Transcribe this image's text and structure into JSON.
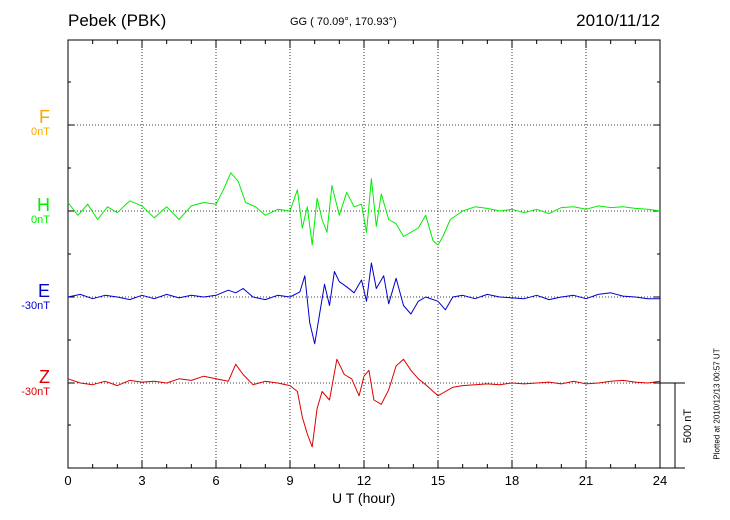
{
  "header": {
    "station": "Pebek (PBK)",
    "coords": "GG ( 70.09°, 170.93°)",
    "date": "2010/11/12"
  },
  "plotted_note": "Plotted at 2010/12/13 00:57 UT",
  "scale_label": "500 nT",
  "chart_data": {
    "type": "line",
    "xlabel": "U T (hour)",
    "xlim": [
      0,
      24
    ],
    "xticks": [
      0,
      3,
      6,
      9,
      12,
      15,
      18,
      21,
      24
    ],
    "grid": true,
    "series": [
      {
        "name": "F",
        "offset": "0nT",
        "color": "#ffa500",
        "values": []
      },
      {
        "name": "H",
        "offset": "0nT",
        "color": "#00ee00",
        "x": [
          0,
          0.4,
          0.8,
          1.2,
          1.6,
          2,
          2.5,
          3,
          3.5,
          4,
          4.5,
          5,
          5.5,
          6,
          6.3,
          6.6,
          6.9,
          7.2,
          7.6,
          8,
          8.5,
          9,
          9.3,
          9.5,
          9.7,
          9.9,
          10.1,
          10.3,
          10.5,
          10.7,
          11,
          11.3,
          11.6,
          11.9,
          12.1,
          12.3,
          12.5,
          12.7,
          13,
          13.3,
          13.6,
          13.9,
          14.2,
          14.5,
          14.8,
          15,
          15.2,
          15.5,
          16,
          16.5,
          17,
          17.5,
          18,
          18.5,
          19,
          19.5,
          20,
          20.5,
          21,
          21.5,
          22,
          22.5,
          23,
          23.5,
          24
        ],
        "values": [
          10,
          -5,
          8,
          -10,
          5,
          -2,
          12,
          6,
          -8,
          5,
          -10,
          6,
          10,
          8,
          25,
          45,
          35,
          10,
          5,
          -5,
          2,
          0,
          25,
          -20,
          5,
          -40,
          15,
          -10,
          -25,
          30,
          -5,
          22,
          5,
          8,
          -25,
          38,
          -18,
          20,
          -10,
          -15,
          -30,
          -25,
          -20,
          -5,
          -35,
          -40,
          -30,
          -10,
          0,
          5,
          3,
          0,
          2,
          -2,
          2,
          -3,
          4,
          5,
          2,
          6,
          4,
          5,
          3,
          2,
          0
        ]
      },
      {
        "name": "E",
        "offset": "-30nT",
        "color": "#0000cc",
        "x": [
          0,
          0.5,
          1,
          1.5,
          2,
          2.5,
          3,
          3.5,
          4,
          4.5,
          5,
          5.5,
          6,
          6.5,
          6.8,
          7.1,
          7.5,
          8,
          8.5,
          9,
          9.4,
          9.6,
          9.8,
          10,
          10.2,
          10.4,
          10.6,
          10.8,
          11,
          11.3,
          11.6,
          11.9,
          12.1,
          12.3,
          12.5,
          12.8,
          13,
          13.3,
          13.6,
          13.9,
          14.2,
          14.5,
          15,
          15.3,
          15.6,
          16,
          16.5,
          17,
          17.5,
          18,
          18.5,
          19,
          19.5,
          20,
          20.5,
          21,
          21.5,
          22,
          22.5,
          23,
          23.5,
          24
        ],
        "values": [
          0,
          3,
          -2,
          2,
          0,
          -3,
          2,
          -2,
          3,
          -1,
          2,
          0,
          2,
          8,
          5,
          10,
          0,
          -3,
          2,
          0,
          6,
          25,
          -30,
          -55,
          -20,
          15,
          -10,
          30,
          18,
          12,
          5,
          20,
          -5,
          40,
          10,
          25,
          -8,
          22,
          -10,
          -20,
          -5,
          0,
          -5,
          -15,
          0,
          2,
          -2,
          3,
          0,
          -1,
          -2,
          2,
          -3,
          0,
          2,
          -2,
          3,
          5,
          1,
          0,
          -2,
          -2
        ]
      },
      {
        "name": "Z",
        "offset": "-30nT",
        "color": "#dd0000",
        "x": [
          0,
          0.5,
          1,
          1.5,
          2,
          2.5,
          3,
          3.5,
          4,
          4.5,
          5,
          5.5,
          6,
          6.5,
          6.8,
          7.1,
          7.5,
          8,
          8.5,
          9,
          9.3,
          9.5,
          9.7,
          9.9,
          10.1,
          10.3,
          10.6,
          10.9,
          11.2,
          11.5,
          11.8,
          12,
          12.2,
          12.4,
          12.7,
          13,
          13.3,
          13.6,
          13.9,
          14.2,
          14.5,
          15,
          15.3,
          15.6,
          16,
          16.5,
          17,
          17.5,
          18,
          18.5,
          19,
          19.5,
          20,
          20.5,
          21,
          21.5,
          22,
          22.5,
          23,
          23.5,
          24
        ],
        "values": [
          5,
          0,
          -2,
          2,
          -3,
          3,
          1,
          2,
          0,
          5,
          3,
          8,
          5,
          2,
          22,
          10,
          -2,
          2,
          0,
          -3,
          -10,
          -40,
          -60,
          -75,
          -30,
          -10,
          -20,
          28,
          10,
          5,
          -15,
          8,
          15,
          -20,
          -25,
          -8,
          20,
          28,
          15,
          5,
          -2,
          -15,
          -10,
          -5,
          -3,
          -2,
          -1,
          -2,
          0,
          -1,
          0,
          1,
          -1,
          2,
          -1,
          0,
          2,
          3,
          1,
          0,
          2
        ]
      }
    ]
  }
}
